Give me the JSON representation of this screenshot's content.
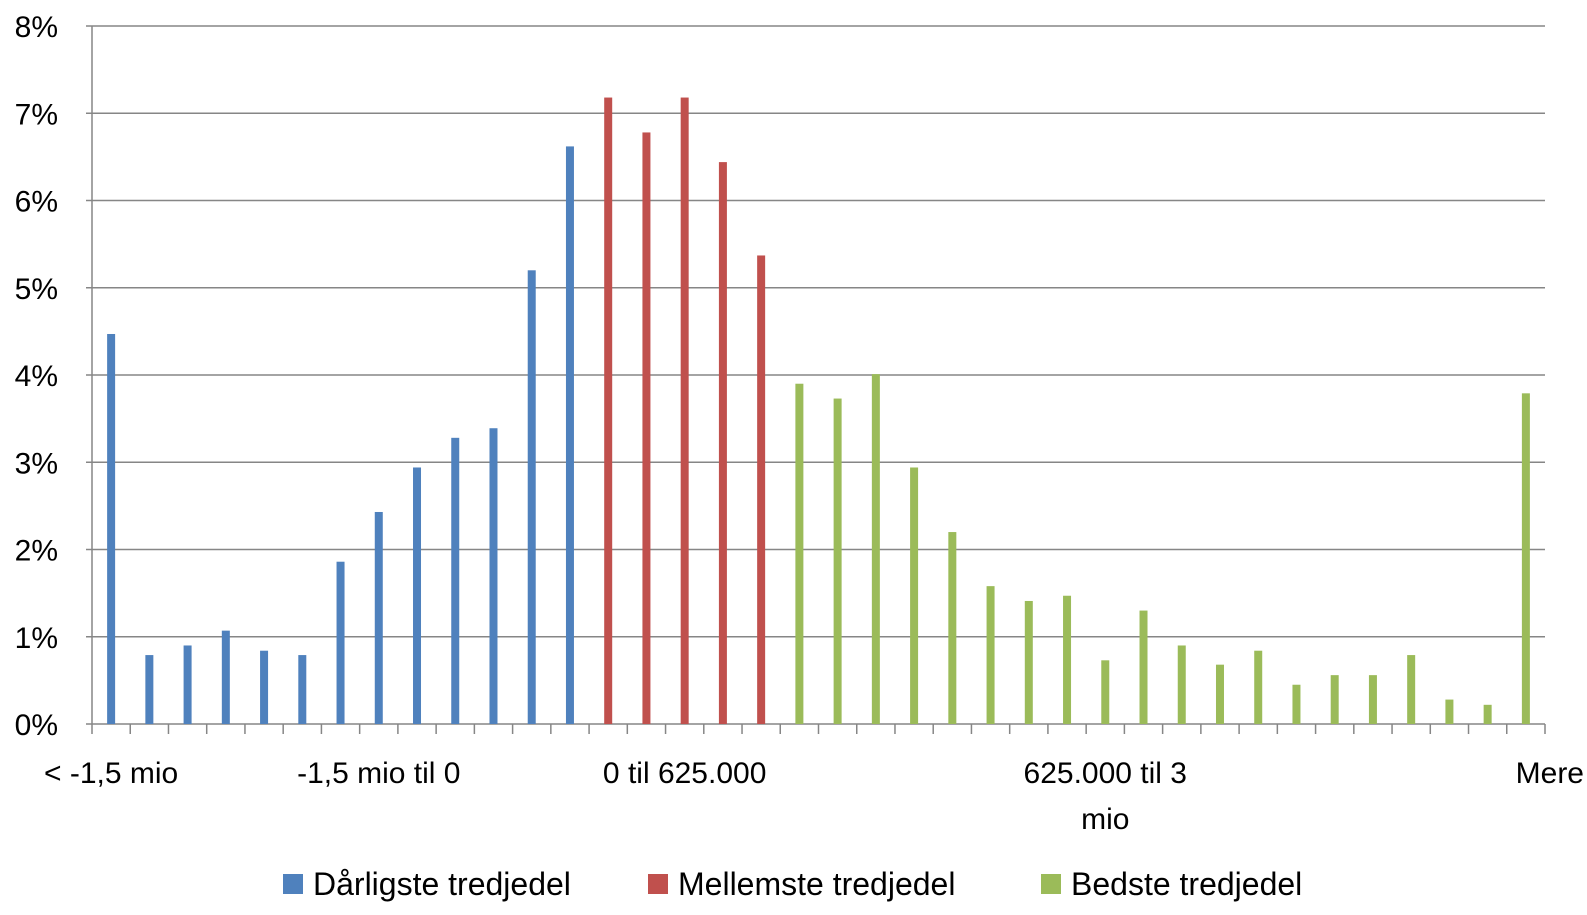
{
  "chart_data": {
    "type": "bar",
    "ylim": [
      0,
      8
    ],
    "y_ticks": [
      "0%",
      "1%",
      "2%",
      "3%",
      "4%",
      "5%",
      "6%",
      "7%",
      "8%"
    ],
    "grid": true,
    "legend_position": "bottom",
    "category_labels": [
      {
        "text": [
          "< -1,5 mio"
        ],
        "bin": 0
      },
      {
        "text": [
          "-1,5 mio til 0"
        ],
        "bin": 7
      },
      {
        "text": [
          "0 til 625.000"
        ],
        "bin": 15
      },
      {
        "text": [
          "625.000 til 3",
          "mio"
        ],
        "bin": 26
      },
      {
        "text": [
          "Mere"
        ],
        "bin": 38
      }
    ],
    "series": [
      {
        "name": "Dårligste tredjedel",
        "color": "#4F81BD",
        "start_bin": 0,
        "values": [
          4.47,
          0.79,
          0.9,
          1.07,
          0.84,
          0.79,
          1.86,
          2.43,
          2.94,
          3.28,
          3.39,
          5.2,
          6.62
        ]
      },
      {
        "name": "Mellemste tredjedel",
        "color": "#C0504D",
        "start_bin": 13,
        "values": [
          7.18,
          6.78,
          7.18,
          6.44,
          5.37
        ]
      },
      {
        "name": "Bedste tredjedel",
        "color": "#9BBB59",
        "start_bin": 18,
        "values": [
          3.9,
          3.73,
          4.01,
          2.94,
          2.2,
          1.58,
          1.41,
          1.47,
          0.73,
          1.3,
          0.9,
          0.68,
          0.84,
          0.45,
          0.56,
          0.56,
          0.79,
          0.28,
          0.22,
          3.79
        ]
      }
    ]
  }
}
